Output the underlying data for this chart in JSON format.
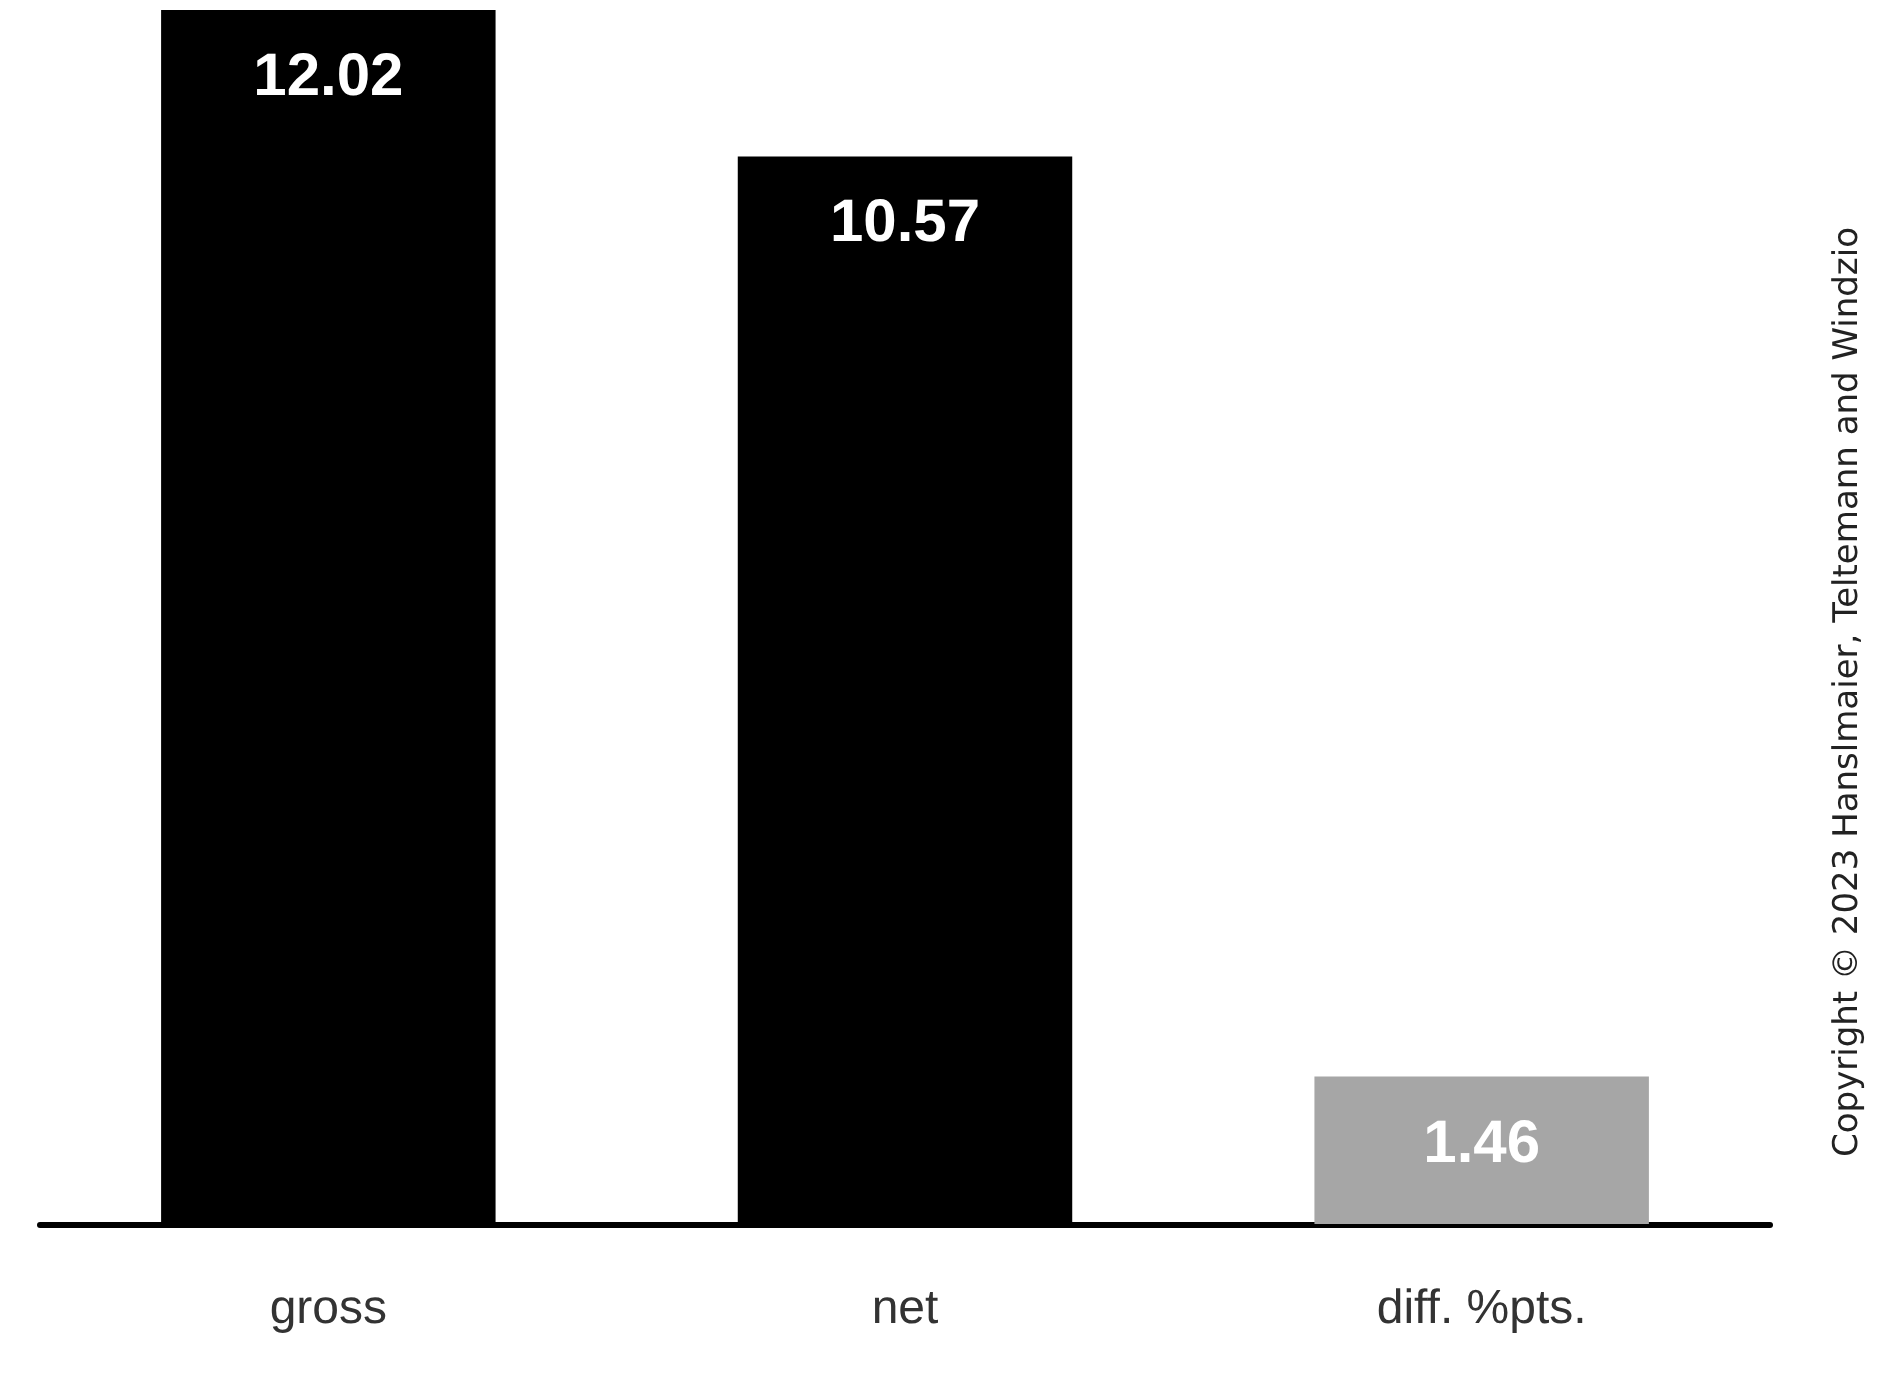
{
  "chart_data": {
    "type": "bar",
    "categories": [
      "gross",
      "net",
      "diff. %pts."
    ],
    "values": [
      12.02,
      10.57,
      1.46
    ],
    "colors": [
      "#000000",
      "#000000",
      "#a6a6a6"
    ],
    "data_labels": true,
    "annotations": [
      "Copyright © 2023 Hanslmaier, Teltemann and Windzio"
    ]
  }
}
